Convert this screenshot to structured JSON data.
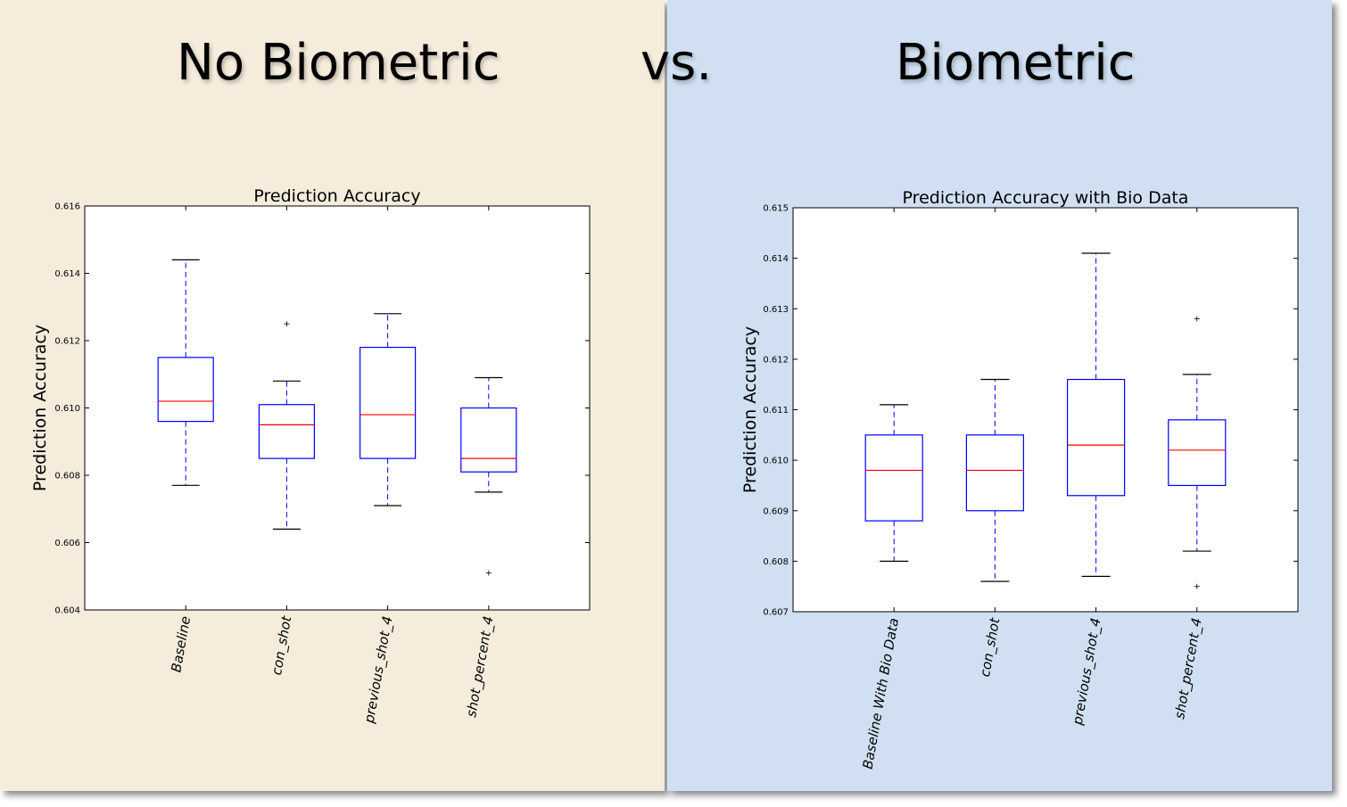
{
  "slide": {
    "left_heading": "No Biometric",
    "vs_label": "vs.",
    "right_heading": "Biometric",
    "colors": {
      "left_background": "#f5ecdc",
      "right_background": "#d0e0f2",
      "box": "#0000ff",
      "median": "#ff0000",
      "whisker_cap": "#000000"
    }
  },
  "chart_data": [
    {
      "type": "box",
      "title": "Prediction Accuracy",
      "ylabel": "Prediction Accuracy",
      "xlabel": "",
      "ylim": [
        0.604,
        0.616
      ],
      "yticks": [
        "0.604",
        "0.606",
        "0.608",
        "0.610",
        "0.612",
        "0.614",
        "0.616"
      ],
      "grid": false,
      "categories": [
        "Baseline",
        "con_shot",
        "previous_shot_4",
        "shot_percent_4"
      ],
      "boxes": [
        {
          "whisker_low": 0.6077,
          "q1": 0.6096,
          "median": 0.6102,
          "q3": 0.6115,
          "whisker_high": 0.6144,
          "outliers": []
        },
        {
          "whisker_low": 0.6064,
          "q1": 0.6085,
          "median": 0.6095,
          "q3": 0.6101,
          "whisker_high": 0.6108,
          "outliers": [
            0.6125
          ]
        },
        {
          "whisker_low": 0.6071,
          "q1": 0.6085,
          "median": 0.6098,
          "q3": 0.6118,
          "whisker_high": 0.6128,
          "outliers": []
        },
        {
          "whisker_low": 0.6075,
          "q1": 0.6081,
          "median": 0.6085,
          "q3": 0.61,
          "whisker_high": 0.6109,
          "outliers": [
            0.6051
          ]
        }
      ]
    },
    {
      "type": "box",
      "title": "Prediction Accuracy with Bio Data",
      "ylabel": "Prediction Accuracy",
      "xlabel": "",
      "ylim": [
        0.607,
        0.615
      ],
      "yticks": [
        "0.607",
        "0.608",
        "0.609",
        "0.610",
        "0.611",
        "0.612",
        "0.613",
        "0.614",
        "0.615"
      ],
      "grid": false,
      "categories": [
        "Baseline With Bio Data",
        "con_shot",
        "previous_shot_4",
        "shot_percent_4"
      ],
      "boxes": [
        {
          "whisker_low": 0.608,
          "q1": 0.6088,
          "median": 0.6098,
          "q3": 0.6105,
          "whisker_high": 0.6111,
          "outliers": []
        },
        {
          "whisker_low": 0.6076,
          "q1": 0.609,
          "median": 0.6098,
          "q3": 0.6105,
          "whisker_high": 0.6116,
          "outliers": []
        },
        {
          "whisker_low": 0.6077,
          "q1": 0.6093,
          "median": 0.6103,
          "q3": 0.6116,
          "whisker_high": 0.6141,
          "outliers": []
        },
        {
          "whisker_low": 0.6082,
          "q1": 0.6095,
          "median": 0.6102,
          "q3": 0.6108,
          "whisker_high": 0.6117,
          "outliers": [
            0.6128,
            0.6075
          ]
        }
      ]
    }
  ]
}
